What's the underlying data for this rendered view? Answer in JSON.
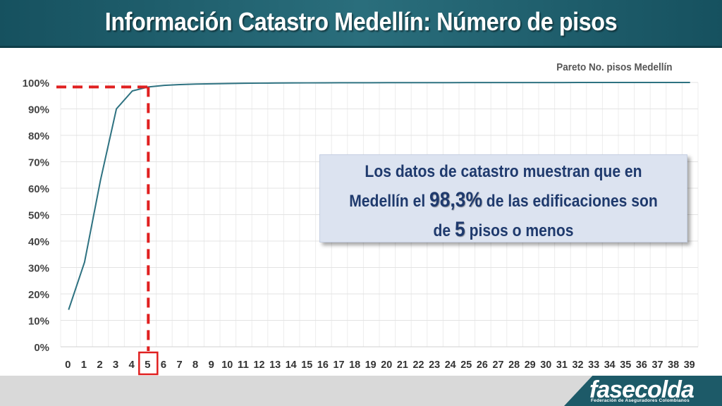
{
  "header": {
    "title": "Información Catastro Medellín: Número de pisos"
  },
  "callout": {
    "line1": "Los datos de catastro muestran que en",
    "line2_pre": "Medellín el",
    "line2_value": "98,3%",
    "line2_post": "de las edificaciones son",
    "line3_pre": "de",
    "line3_value": "5",
    "line3_post": "pisos o menos"
  },
  "footer": {
    "logo": "fasecolda",
    "logo_subtitle": "Federación de Aseguradores Colombianos"
  },
  "colors": {
    "header": "#1d5a68",
    "line": "#2e7281",
    "highlight": "#e02020",
    "callout_bg": "#dce3f0",
    "callout_text": "#1f3a6d"
  },
  "chart_data": {
    "type": "line",
    "title": "Pareto No. pisos Medellín",
    "xlabel": "",
    "ylabel": "",
    "x": [
      0,
      1,
      2,
      3,
      4,
      5,
      6,
      7,
      8,
      9,
      10,
      11,
      12,
      13,
      14,
      15,
      16,
      17,
      18,
      19,
      20,
      21,
      22,
      23,
      24,
      25,
      26,
      27,
      28,
      29,
      30,
      31,
      32,
      33,
      34,
      35,
      36,
      37,
      38,
      39
    ],
    "y_ticks": [
      "0%",
      "10%",
      "20%",
      "30%",
      "40%",
      "50%",
      "60%",
      "70%",
      "80%",
      "90%",
      "100%"
    ],
    "ylim": [
      0,
      100
    ],
    "series": [
      {
        "values": [
          14,
          32,
          63,
          90,
          96.8,
          98.3,
          98.9,
          99.2,
          99.4,
          99.5,
          99.6,
          99.7,
          99.75,
          99.8,
          99.82,
          99.85,
          99.87,
          99.89,
          99.9,
          99.91,
          99.92,
          99.93,
          99.94,
          99.95,
          99.95,
          99.96,
          99.96,
          99.97,
          99.97,
          99.98,
          99.98,
          99.98,
          99.99,
          99.99,
          99.99,
          99.99,
          100,
          100,
          100,
          100
        ]
      }
    ],
    "highlight": {
      "x": 5,
      "y": 98.3
    },
    "grid": true
  }
}
